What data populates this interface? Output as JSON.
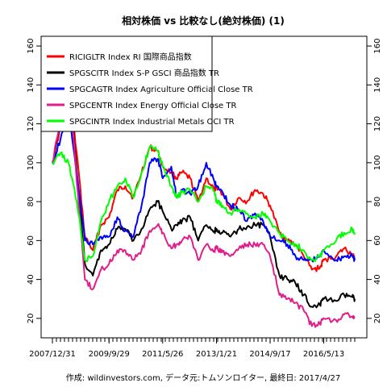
{
  "chart_data": {
    "type": "line",
    "title": "相対株価 vs 比較なし(絶対株価) (1)",
    "caption": "作成: wildinvestors.com, データ元:トムソンロイター, 最終日: 2017/4/27",
    "x": [
      "2007-12-31",
      "2008-03-31",
      "2008-06-30",
      "2008-09-30",
      "2008-12-31",
      "2009-03-31",
      "2009-06-30",
      "2009-09-29",
      "2009-12-31",
      "2010-03-31",
      "2010-06-30",
      "2010-09-30",
      "2010-12-31",
      "2011-03-31",
      "2011-05-26",
      "2011-08-31",
      "2011-10-31",
      "2011-12-30",
      "2012-03-30",
      "2012-06-29",
      "2012-09-28",
      "2012-12-31",
      "2013-01-21",
      "2013-03-29",
      "2013-06-28",
      "2013-09-30",
      "2013-12-31",
      "2014-03-31",
      "2014-06-30",
      "2014-09-17",
      "2014-12-31",
      "2015-03-31",
      "2015-06-30",
      "2015-09-30",
      "2015-12-31",
      "2016-03-31",
      "2016-05-13",
      "2016-09-30",
      "2016-12-30",
      "2017-03-31",
      "2017-04-27"
    ],
    "x_tick_labels": [
      "2007/12/31",
      "2009/9/29",
      "2011/5/26",
      "2013/1/21",
      "2014/9/17",
      "2016/5/13"
    ],
    "y_ticks": [
      20,
      40,
      60,
      80,
      100,
      120,
      140,
      160
    ],
    "ylim": [
      10,
      165
    ],
    "grid": false,
    "legend_position": "top-left",
    "series": [
      {
        "name": "RICIGLTR Index RI 国際商品指数",
        "color": "#ff0000",
        "values": [
          100,
          118,
          140,
          105,
          62,
          55,
          68,
          72,
          86,
          88,
          82,
          95,
          108,
          106,
          98,
          95,
          92,
          95,
          92,
          80,
          92,
          86,
          88,
          84,
          76,
          82,
          80,
          86,
          84,
          78,
          64,
          60,
          58,
          52,
          45,
          46,
          50,
          52,
          56,
          53,
          50
        ]
      },
      {
        "name": "SPGSCITR Index S-P GSCI 商品指数 TR",
        "color": "#000000",
        "values": [
          100,
          120,
          148,
          95,
          48,
          42,
          55,
          58,
          66,
          66,
          60,
          66,
          76,
          80,
          75,
          66,
          68,
          70,
          72,
          60,
          68,
          65,
          66,
          64,
          62,
          66,
          67,
          68,
          68,
          62,
          42,
          40,
          38,
          32,
          26,
          27,
          30,
          29,
          32,
          31,
          30
        ]
      },
      {
        "name": "SPGCAGTR Index Agriculture Official Close TR",
        "color": "#0000ff",
        "values": [
          100,
          112,
          128,
          95,
          60,
          58,
          62,
          62,
          72,
          65,
          62,
          78,
          100,
          102,
          92,
          98,
          82,
          86,
          84,
          88,
          100,
          90,
          88,
          85,
          78,
          76,
          70,
          74,
          70,
          62,
          60,
          58,
          52,
          50,
          50,
          52,
          55,
          50,
          52,
          52,
          50
        ]
      },
      {
        "name": "SPGCENTR Index Energy Official Close TR",
        "color": "#e01e8c",
        "values": [
          100,
          122,
          150,
          90,
          40,
          35,
          45,
          48,
          55,
          55,
          50,
          55,
          65,
          68,
          64,
          56,
          58,
          60,
          62,
          50,
          58,
          55,
          56,
          54,
          52,
          56,
          58,
          58,
          58,
          52,
          32,
          30,
          28,
          24,
          16,
          17,
          20,
          19,
          22,
          21,
          20
        ]
      },
      {
        "name": "SPGCINTR Index Industrial Metals OCI TR",
        "color": "#00ff00",
        "values": [
          100,
          105,
          100,
          80,
          50,
          52,
          70,
          80,
          88,
          92,
          82,
          95,
          108,
          106,
          98,
          88,
          82,
          85,
          86,
          80,
          88,
          85,
          80,
          78,
          74,
          76,
          74,
          72,
          74,
          70,
          64,
          60,
          58,
          55,
          50,
          52,
          55,
          60,
          64,
          66,
          64
        ]
      }
    ]
  }
}
